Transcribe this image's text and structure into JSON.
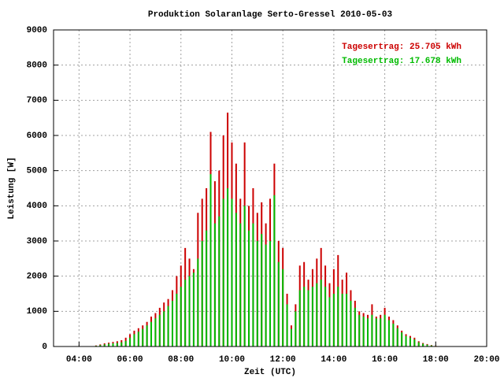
{
  "chart_data": {
    "type": "impulse",
    "title": "Produktion Solaranlage Serto-Gressel 2010-05-03",
    "xlabel": "Zeit (UTC)",
    "ylabel": "Leistung [W]",
    "annotations": [
      {
        "text": "Tagesertrag: 25.705 kWh",
        "color": "#cc0000"
      },
      {
        "text": "Tagesertrag: 17.678 kWh",
        "color": "#00bb00"
      }
    ],
    "x": [
      "04:30",
      "04:40",
      "04:50",
      "05:00",
      "05:10",
      "05:20",
      "05:30",
      "05:40",
      "05:50",
      "06:00",
      "06:10",
      "06:20",
      "06:30",
      "06:40",
      "06:50",
      "07:00",
      "07:10",
      "07:20",
      "07:30",
      "07:40",
      "07:50",
      "08:00",
      "08:10",
      "08:20",
      "08:30",
      "08:40",
      "08:50",
      "09:00",
      "09:10",
      "09:20",
      "09:30",
      "09:40",
      "09:50",
      "10:00",
      "10:10",
      "10:20",
      "10:30",
      "10:40",
      "10:50",
      "11:00",
      "11:10",
      "11:20",
      "11:30",
      "11:40",
      "11:50",
      "12:00",
      "12:10",
      "12:20",
      "12:30",
      "12:40",
      "12:50",
      "13:00",
      "13:10",
      "13:20",
      "13:30",
      "13:40",
      "13:50",
      "14:00",
      "14:10",
      "14:20",
      "14:30",
      "14:40",
      "14:50",
      "15:00",
      "15:10",
      "15:20",
      "15:30",
      "15:40",
      "15:50",
      "16:00",
      "16:10",
      "16:20",
      "16:30",
      "16:40",
      "16:50",
      "17:00",
      "17:10",
      "17:20",
      "17:30",
      "17:40",
      "17:50",
      "18:00"
    ],
    "series": [
      {
        "color": "#cc0000",
        "values": [
          10,
          30,
          60,
          90,
          110,
          130,
          150,
          180,
          250,
          350,
          450,
          520,
          600,
          700,
          850,
          950,
          1100,
          1250,
          1350,
          1600,
          2000,
          2300,
          2800,
          2500,
          2200,
          3800,
          4200,
          4500,
          6100,
          4700,
          5000,
          6000,
          6650,
          5800,
          5200,
          4200,
          5800,
          4000,
          4500,
          3800,
          4100,
          3500,
          4200,
          5200,
          3000,
          2800,
          1500,
          600,
          1200,
          2300,
          2400,
          1900,
          2200,
          2500,
          2800,
          2300,
          1800,
          2200,
          2600,
          1900,
          2100,
          1600,
          1300,
          1000,
          950,
          900,
          1200,
          850,
          900,
          1100,
          850,
          750,
          600,
          450,
          350,
          300,
          250,
          150,
          100,
          70,
          40,
          20
        ]
      },
      {
        "color": "#00bb00",
        "values": [
          10,
          20,
          40,
          60,
          80,
          90,
          100,
          120,
          160,
          250,
          350,
          420,
          500,
          600,
          700,
          800,
          900,
          1000,
          1150,
          1300,
          1500,
          1700,
          1900,
          2000,
          2100,
          2500,
          3000,
          3300,
          4900,
          3500,
          3700,
          4200,
          4500,
          4200,
          3800,
          3500,
          4000,
          3300,
          3500,
          3000,
          3200,
          2900,
          3000,
          4300,
          2400,
          2200,
          1200,
          500,
          1000,
          1600,
          1700,
          1600,
          1700,
          1800,
          1900,
          1700,
          1400,
          1500,
          1700,
          1500,
          1500,
          1300,
          1100,
          900,
          850,
          800,
          900,
          800,
          800,
          900,
          750,
          650,
          520,
          400,
          300,
          250,
          200,
          120,
          80,
          50,
          30,
          15
        ]
      }
    ],
    "xlim": [
      "03:00",
      "20:00"
    ],
    "xticks": [
      "04:00",
      "06:00",
      "08:00",
      "10:00",
      "12:00",
      "14:00",
      "16:00",
      "18:00",
      "20:00"
    ],
    "ylim": [
      0,
      9000
    ],
    "yticks": [
      0,
      1000,
      2000,
      3000,
      4000,
      5000,
      6000,
      7000,
      8000,
      9000
    ],
    "grid": true
  }
}
